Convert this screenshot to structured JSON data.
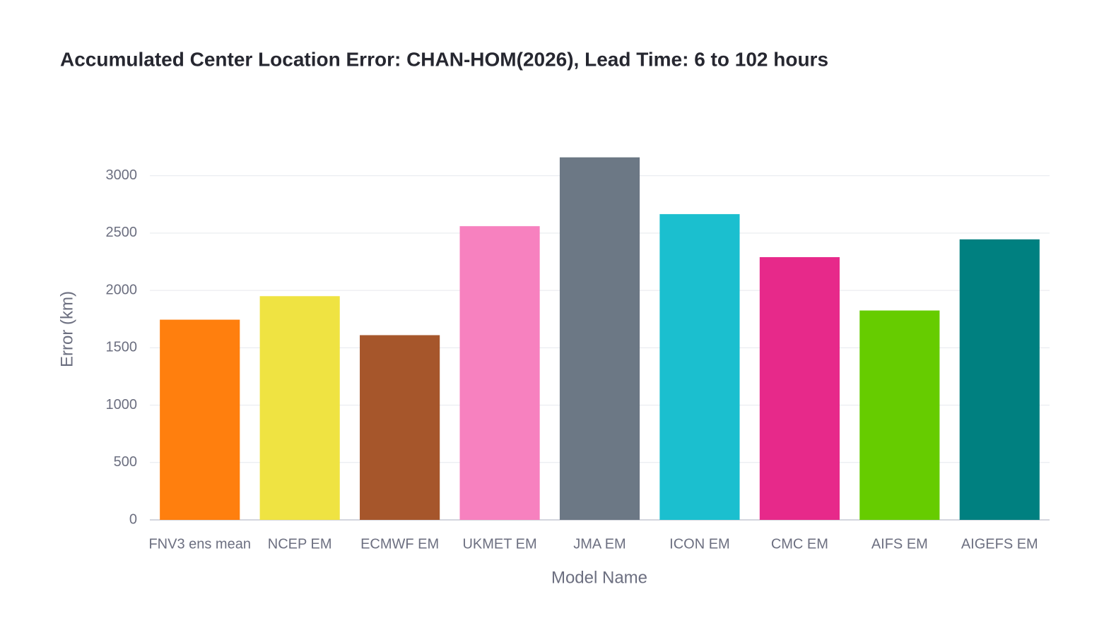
{
  "chart_data": {
    "type": "bar",
    "title": "Accumulated Center Location Error: CHAN-HOM(2026), Lead Time: 6 to 102 hours",
    "x_label": "Model Name",
    "y_label": "Error (km)",
    "categories": [
      "FNV3 ens mean",
      "NCEP EM",
      "ECMWF EM",
      "UKMET EM",
      "JMA EM",
      "ICON EM",
      "CMC EM",
      "AIFS EM",
      "AIGEFS EM"
    ],
    "values": [
      1745,
      1950,
      1610,
      2560,
      3160,
      2665,
      2290,
      1825,
      2445
    ],
    "colors": [
      "#ff7f0e",
      "#efe342",
      "#a6562b",
      "#f781bf",
      "#6c7885",
      "#1bbfcf",
      "#e7298a",
      "#66cc00",
      "#008080"
    ],
    "ylim": [
      0,
      3300
    ],
    "yticks": [
      0,
      500,
      1000,
      1500,
      2000,
      2500,
      3000
    ],
    "grid": true
  }
}
